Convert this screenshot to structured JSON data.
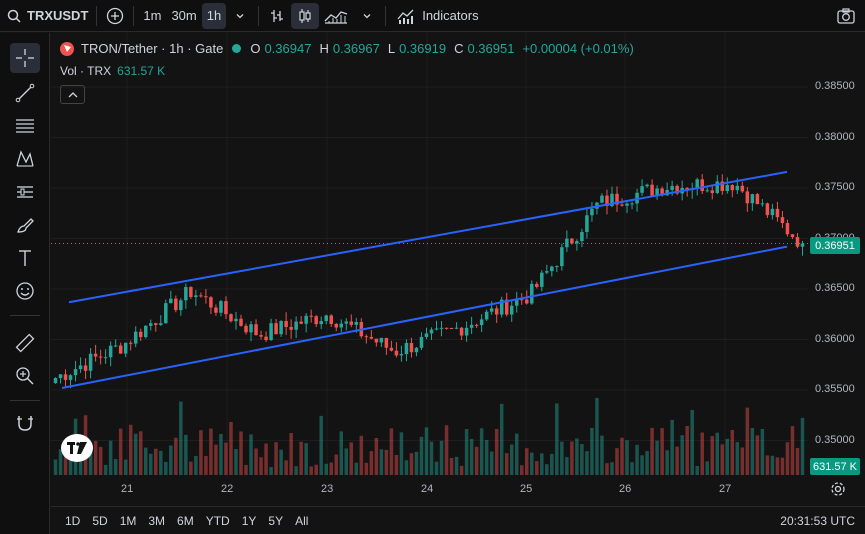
{
  "toolbar": {
    "symbol": "TRXUSDT",
    "timeframes": [
      "1m",
      "30m",
      "1h"
    ],
    "active_timeframe": "1h",
    "indicators_label": "Indicators"
  },
  "legend": {
    "title": "TRON/Tether · 1h · Gate",
    "o_label": "O",
    "o_value": "0.36947",
    "h_label": "H",
    "h_value": "0.36967",
    "l_label": "L",
    "l_value": "0.36919",
    "c_label": "C",
    "c_value": "0.36951",
    "change": "+0.00004 (+0.01%)",
    "vol_label": "Vol · TRX",
    "vol_value": "631.57 K"
  },
  "price_axis": [
    "0.38500",
    "0.38000",
    "0.37500",
    "0.37000",
    "0.36500",
    "0.36000",
    "0.35500",
    "0.35000"
  ],
  "current_price_tag": "0.36951",
  "volume_tag": "631.57 K",
  "time_axis": [
    "21",
    "22",
    "23",
    "24",
    "25",
    "26",
    "27"
  ],
  "ranges": [
    "1D",
    "5D",
    "1M",
    "3M",
    "6M",
    "YTD",
    "1Y",
    "5Y",
    "All"
  ],
  "clock": "20:31:53 UTC",
  "colors": {
    "up": "#26a69a",
    "down": "#ef5350",
    "channel": "#2962ff",
    "background": "#131313"
  },
  "icons": [
    "search-icon",
    "plus-circle-icon",
    "chevron-down-icon",
    "bar-style-icon",
    "candle-style-icon",
    "area-style-icon",
    "indicators-icon",
    "camera-icon",
    "crosshair-icon",
    "trend-line-icon",
    "fib-icon",
    "pattern-icon",
    "forecast-icon",
    "brush-icon",
    "text-icon",
    "emoji-icon",
    "ruler-icon",
    "zoom-icon",
    "magnet-icon",
    "gear-icon",
    "tradingview-logo-icon"
  ],
  "chart_data": {
    "type": "candlestick",
    "title": "TRON/Tether · 1h · Gate",
    "ylim": [
      0.3475,
      0.3875
    ],
    "x_categories": [
      "21",
      "22",
      "23",
      "24",
      "25",
      "26",
      "27"
    ],
    "key_points": [
      {
        "x": "20 (start)",
        "close": 0.3562
      },
      {
        "x": "21",
        "close": 0.3595
      },
      {
        "x": "22",
        "close": 0.3648
      },
      {
        "x": "22 (late)",
        "close": 0.3605
      },
      {
        "x": "23",
        "close": 0.3625
      },
      {
        "x": "23 (late)",
        "close": 0.3588
      },
      {
        "x": "24",
        "close": 0.3613
      },
      {
        "x": "25",
        "close": 0.3645
      },
      {
        "x": "25 (late)",
        "close": 0.3735
      },
      {
        "x": "26",
        "close": 0.3752
      },
      {
        "x": "27",
        "close": 0.3755
      },
      {
        "x": "27 (last)",
        "close": 0.36951
      }
    ],
    "upper_channel": [
      0.3628,
      0.3758
    ],
    "lower_channel": [
      0.3548,
      0.369
    ],
    "last": {
      "open": 0.36947,
      "high": 0.36967,
      "low": 0.36919,
      "close": 0.36951
    }
  }
}
